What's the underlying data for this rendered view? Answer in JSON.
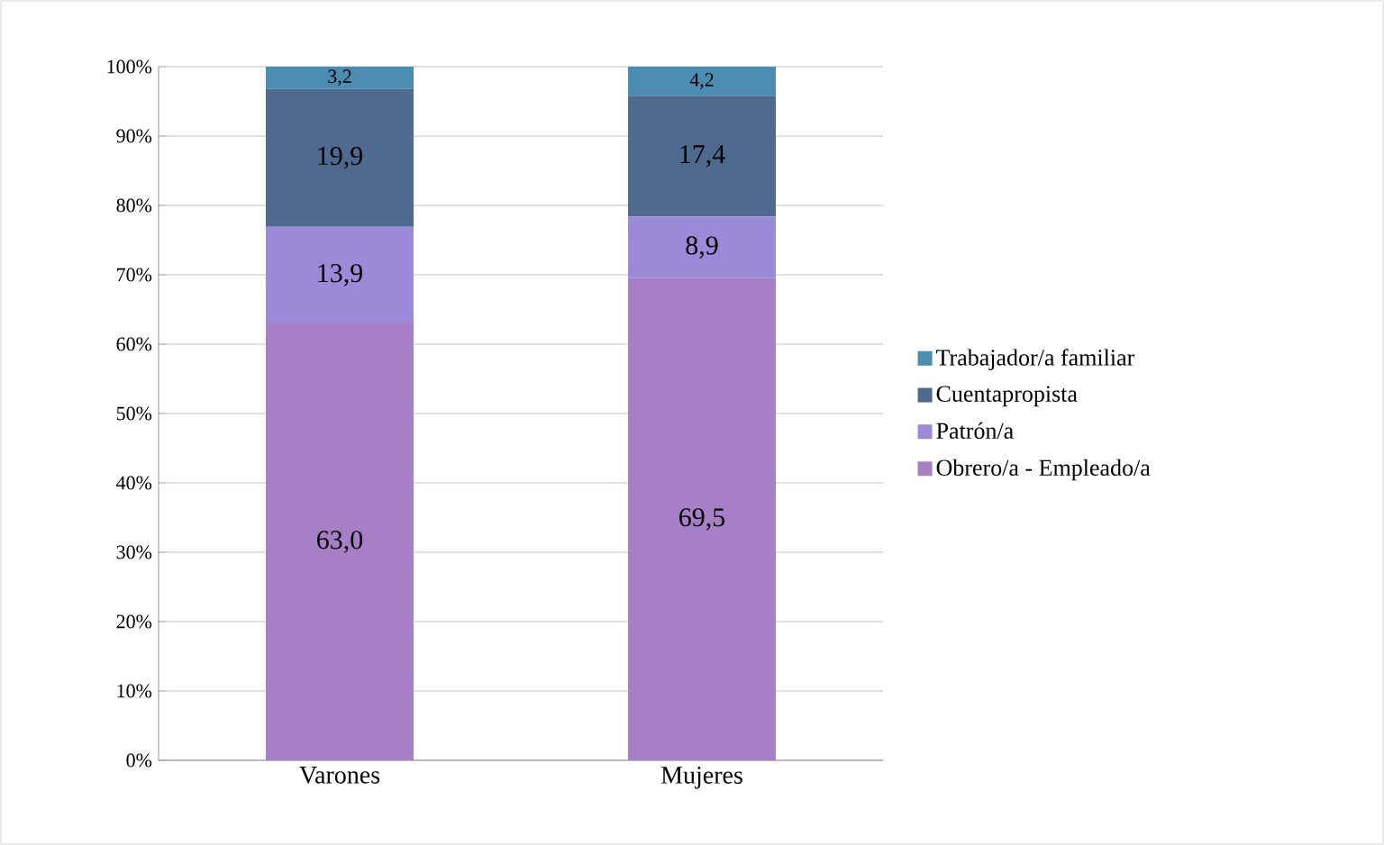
{
  "chart_data": {
    "type": "bar",
    "stacked": true,
    "categories": [
      "Varones",
      "Mujeres"
    ],
    "series": [
      {
        "name": "Obrero/a - Empleado/a",
        "color": "#a77fc6",
        "values": [
          63.0,
          69.5
        ],
        "value_labels": [
          "63,0",
          "69,5"
        ]
      },
      {
        "name": "Patrón/a",
        "color": "#9a8ad8",
        "values": [
          13.9,
          8.9
        ],
        "value_labels": [
          "13,9",
          "8,9"
        ]
      },
      {
        "name": "Cuentapropista",
        "color": "#4e6a8e",
        "values": [
          19.9,
          17.4
        ],
        "value_labels": [
          "19,9",
          "17,4"
        ]
      },
      {
        "name": "Trabajador/a familiar",
        "color": "#4b8db0",
        "values": [
          3.2,
          4.2
        ],
        "value_labels": [
          "3,2",
          "4,2"
        ]
      }
    ],
    "ylim": [
      0,
      100
    ],
    "yticks": [
      {
        "value": 0,
        "label": "0%"
      },
      {
        "value": 10,
        "label": "10%"
      },
      {
        "value": 20,
        "label": "20%"
      },
      {
        "value": 30,
        "label": "30%"
      },
      {
        "value": 40,
        "label": "40%"
      },
      {
        "value": 50,
        "label": "50%"
      },
      {
        "value": 60,
        "label": "60%"
      },
      {
        "value": 70,
        "label": "70%"
      },
      {
        "value": 80,
        "label": "80%"
      },
      {
        "value": 90,
        "label": "90%"
      },
      {
        "value": 100,
        "label": "100%"
      }
    ],
    "grid": "y",
    "legend": "right"
  }
}
